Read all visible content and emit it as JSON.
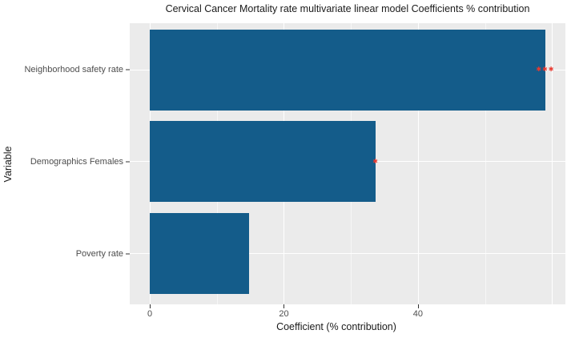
{
  "chart_data": {
    "type": "bar",
    "orientation": "horizontal",
    "title": "Cervical Cancer Mortality rate multivariate linear model Coefficients % contribution",
    "xlabel": "Coefficient (% contribution)",
    "ylabel": "Variable",
    "categories": [
      "Neighborhood safety rate",
      "Demographics Females",
      "Poverty rate"
    ],
    "values": [
      59,
      33.7,
      14.8
    ],
    "significance": [
      "***",
      "*",
      ""
    ],
    "x_ticks": [
      0,
      20,
      40
    ],
    "x_tick_labels": [
      "0",
      "20",
      "40"
    ],
    "x_grid_major": [
      0,
      20,
      40,
      60
    ],
    "x_grid_minor": [
      10,
      30,
      50
    ],
    "xlim": [
      -3,
      62
    ],
    "legend": "none",
    "grid": "white major and minor vertical lines, white horizontal line at each category",
    "colors": {
      "bar": "#145c8a",
      "panel_background": "#ebebeb",
      "grid_major": "#ffffff",
      "significance": "#e8392f",
      "tick_text": "#4d4d4d"
    }
  }
}
